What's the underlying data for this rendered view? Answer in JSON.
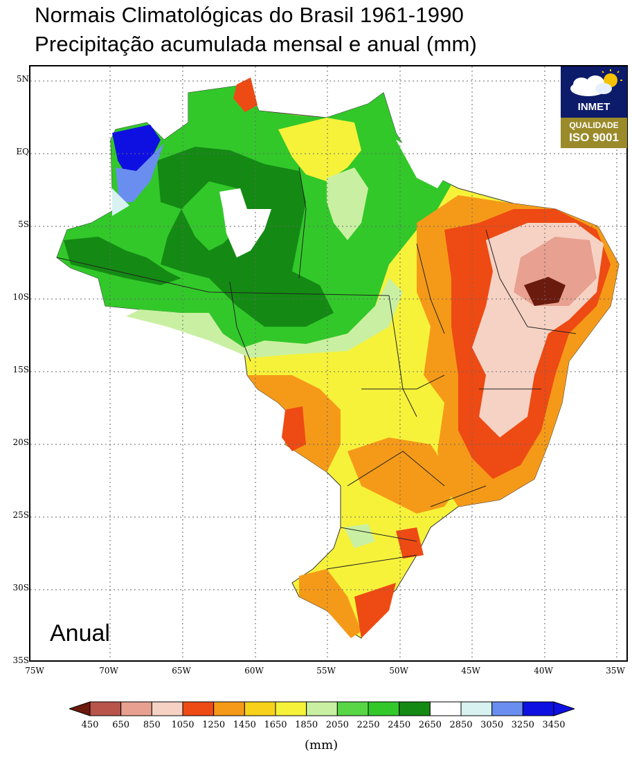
{
  "title": {
    "line1": "Normais Climatológicas do Brasil 1961-1990",
    "line2": "Precipitação acumulada mensal e anual (mm)"
  },
  "map": {
    "period_label": "Anual",
    "lat_labels": [
      "5N",
      "EQ",
      "5S",
      "10S",
      "15S",
      "20S",
      "25S",
      "30S",
      "35S"
    ],
    "lon_labels": [
      "75W",
      "70W",
      "65W",
      "60W",
      "55W",
      "50W",
      "45W",
      "40W",
      "35W"
    ],
    "grid": true
  },
  "logo": {
    "name": "INMET",
    "line2": "QUALIDADE",
    "line3": "ISO 9001"
  },
  "colorbar": {
    "unit": "(mm)",
    "ticks": [
      "450",
      "650",
      "850",
      "1050",
      "1250",
      "1450",
      "1650",
      "1850",
      "2050",
      "2250",
      "2450",
      "2650",
      "2850",
      "3050",
      "3250",
      "3450"
    ],
    "colors": [
      "#6b1a0e",
      "#b8544a",
      "#e8a090",
      "#f6d2c4",
      "#ee4a14",
      "#f59a18",
      "#f8d21a",
      "#f6f23a",
      "#c9f0a2",
      "#58d646",
      "#32c82a",
      "#148a14",
      "#ffffff",
      "#d8f2f2",
      "#6a8ef0",
      "#0e10e2",
      "#0e10e2"
    ]
  }
}
